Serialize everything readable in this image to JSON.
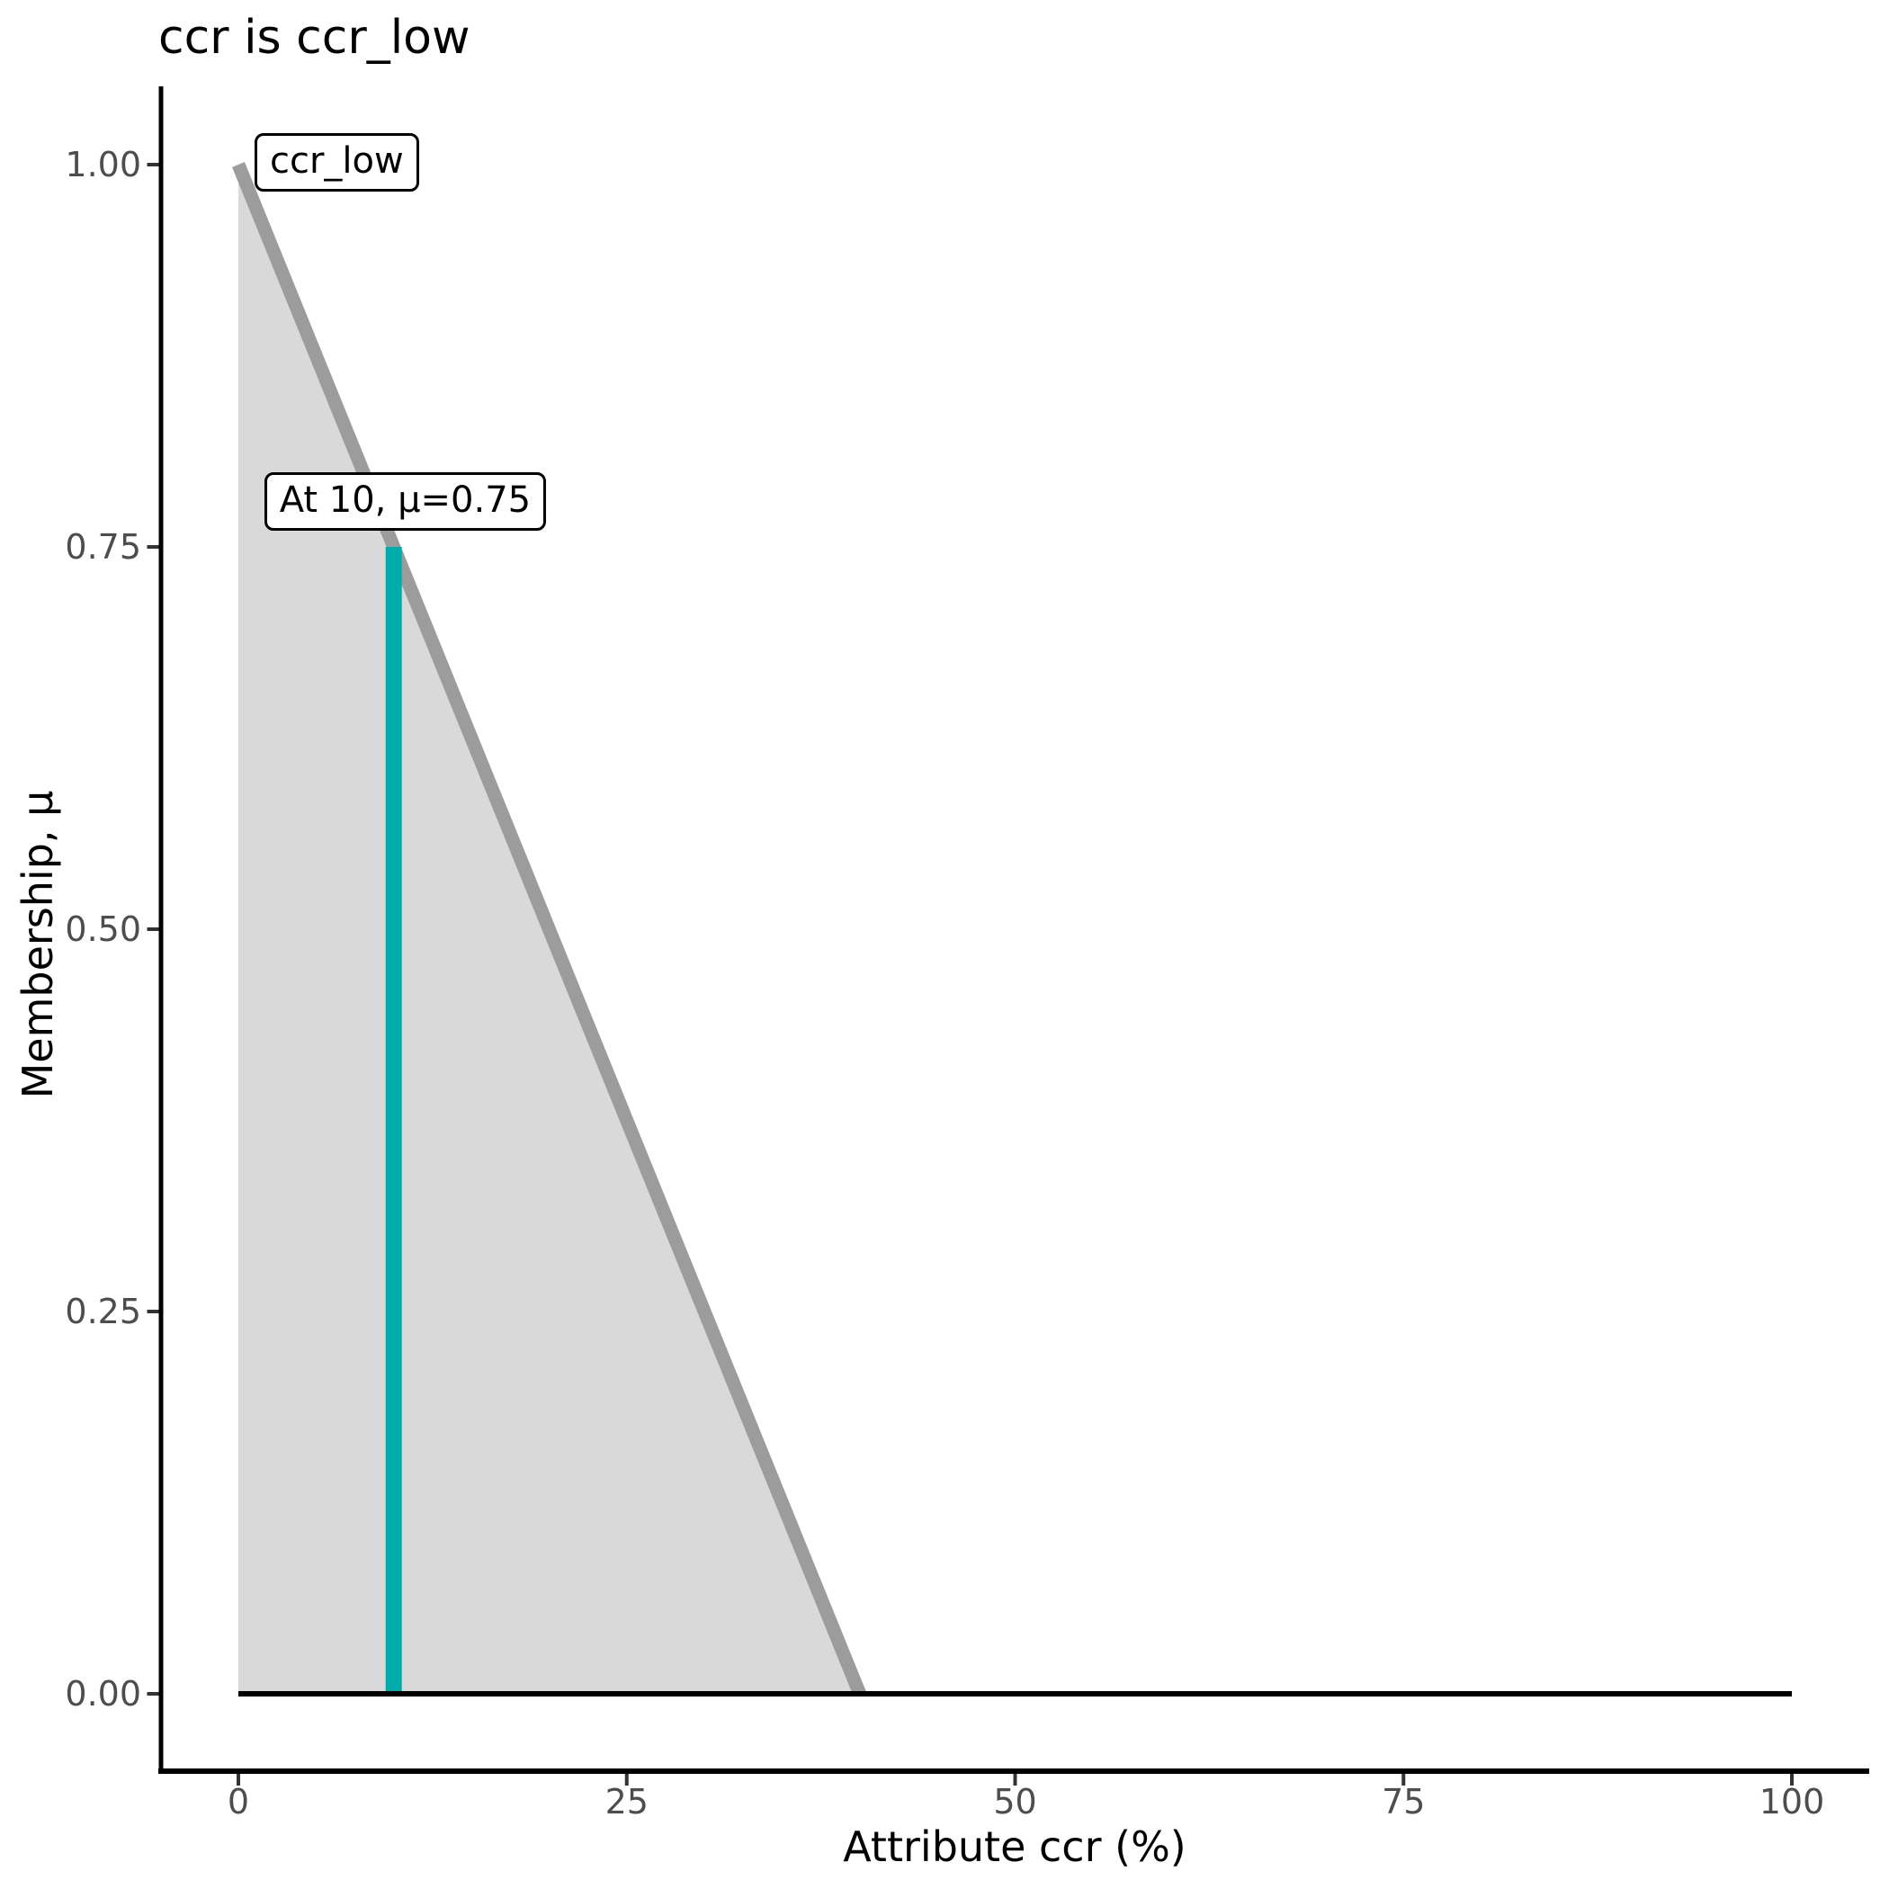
{
  "title": "ccr is ccr_low",
  "chart_data": {
    "type": "area",
    "title": "ccr is ccr_low",
    "xlabel": "Attribute ccr (%)",
    "ylabel": "Membership, μ",
    "xlim": [
      0,
      100
    ],
    "ylim": [
      0,
      1
    ],
    "grid": false,
    "legend": "none",
    "x_ticks": [
      {
        "value": 0,
        "label": "0"
      },
      {
        "value": 25,
        "label": "25"
      },
      {
        "value": 50,
        "label": "50"
      },
      {
        "value": 75,
        "label": "75"
      },
      {
        "value": 100,
        "label": "100"
      }
    ],
    "y_ticks": [
      {
        "value": 0.0,
        "label": "0.00"
      },
      {
        "value": 0.25,
        "label": "0.25"
      },
      {
        "value": 0.5,
        "label": "0.50"
      },
      {
        "value": 0.75,
        "label": "0.75"
      },
      {
        "value": 1.0,
        "label": "1.00"
      }
    ],
    "membership_function": {
      "name": "ccr_low",
      "points": [
        [
          0,
          1.0
        ],
        [
          40,
          0.0
        ],
        [
          100,
          0.0
        ]
      ]
    },
    "descending_edge": [
      [
        0,
        1.0
      ],
      [
        40,
        0.0
      ]
    ],
    "fill_polygon": [
      [
        0,
        1.0
      ],
      [
        40,
        0.0
      ],
      [
        0,
        0.0
      ]
    ],
    "baseline": [
      [
        0,
        0.0
      ],
      [
        100,
        0.0
      ]
    ],
    "highlight": {
      "x": 10,
      "mu": 0.75
    },
    "annotations": [
      {
        "text": "ccr_low",
        "anchor_x": 0,
        "anchor_mu": 1.0
      },
      {
        "text": "At 10, μ=0.75",
        "anchor_x": 10,
        "anchor_mu": 0.75
      }
    ],
    "colors": {
      "membership_line": "#9C9C9C",
      "membership_fill": "#D9D9D9",
      "highlight_line": "#00ABAB",
      "baseline": "#000000",
      "axis": "#000000",
      "tick": "#333333",
      "tick_label": "#4D4D4D",
      "text": "#000000"
    }
  }
}
